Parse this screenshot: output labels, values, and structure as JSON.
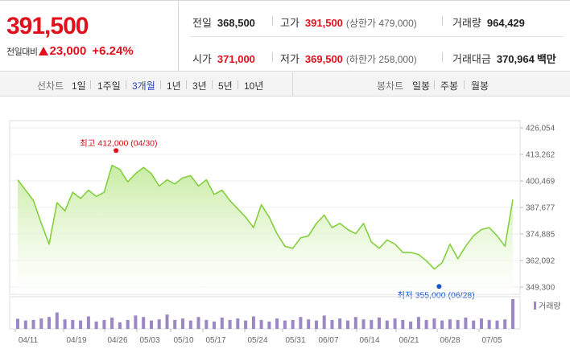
{
  "quote": {
    "current_price": "391,500",
    "change_label": "전일대비",
    "change_amount": "23,000",
    "change_rate": "+6.24%",
    "prev_close_label": "전일",
    "prev_close": "368,500",
    "high_label": "고가",
    "high": "391,500",
    "upper_limit": "(상한가 479,000)",
    "volume_label": "거래량",
    "volume": "964,429",
    "open_label": "시가",
    "open": "371,000",
    "low_label": "저가",
    "low": "369,500",
    "lower_limit": "(하한가 258,000)",
    "amount_label": "거래대금",
    "amount": "370,964",
    "amount_unit": "백만"
  },
  "line_tabs": {
    "label": "선차트",
    "items": [
      "1일",
      "1주일",
      "3개월",
      "1년",
      "3년",
      "5년",
      "10년"
    ],
    "active": "3개월"
  },
  "candle_tabs": {
    "label": "봉차트",
    "items": [
      "일봉",
      "주봉",
      "월봉"
    ]
  },
  "colors": {
    "price_up": "#e0101d",
    "price_down": "#1a55c8",
    "line": "#84cf3e",
    "volume_bar": "#9b87c4"
  },
  "chart_data": {
    "type": "area",
    "price_ticks": [
      "426,054",
      "413,262",
      "400,469",
      "387,677",
      "374,885",
      "362,092",
      "349,300"
    ],
    "ylim": [
      349300,
      426054
    ],
    "x_ticks": [
      "04/11",
      "04/19",
      "04/26",
      "05/03",
      "05/10",
      "05/17",
      "05/24",
      "05/31",
      "06/07",
      "06/14",
      "06/21",
      "06/28",
      "07/05"
    ],
    "max_annotation": "최고 412,000 (04/30)",
    "min_annotation": "최저 355,000 (06/28)",
    "volume_legend": "거래량",
    "price": [
      401000,
      396000,
      391000,
      380000,
      370000,
      390000,
      386000,
      395000,
      392000,
      396000,
      393000,
      395000,
      408000,
      406000,
      400000,
      404000,
      407000,
      404000,
      398000,
      401000,
      399000,
      402000,
      403000,
      398000,
      401000,
      394000,
      396000,
      391000,
      387000,
      383000,
      378000,
      389000,
      383000,
      375000,
      369000,
      368000,
      373000,
      374000,
      380000,
      384000,
      378000,
      380000,
      377000,
      375000,
      380000,
      371000,
      368000,
      372000,
      370000,
      366000,
      366000,
      365000,
      362000,
      358000,
      361000,
      370000,
      363000,
      369000,
      374000,
      377000,
      378000,
      374000,
      369000,
      391500
    ],
    "volume": [
      34,
      28,
      30,
      35,
      40,
      55,
      32,
      30,
      28,
      42,
      25,
      30,
      38,
      22,
      30,
      45,
      40,
      28,
      32,
      48,
      30,
      35,
      28,
      40,
      30,
      25,
      38,
      30,
      35,
      28,
      42,
      30,
      25,
      35,
      28,
      30,
      40,
      32,
      28,
      45,
      30,
      35,
      28,
      40,
      32,
      30,
      38,
      28,
      35,
      30,
      25,
      40,
      30,
      35,
      28,
      32,
      30,
      38,
      28,
      35,
      30,
      28,
      32,
      100
    ]
  }
}
